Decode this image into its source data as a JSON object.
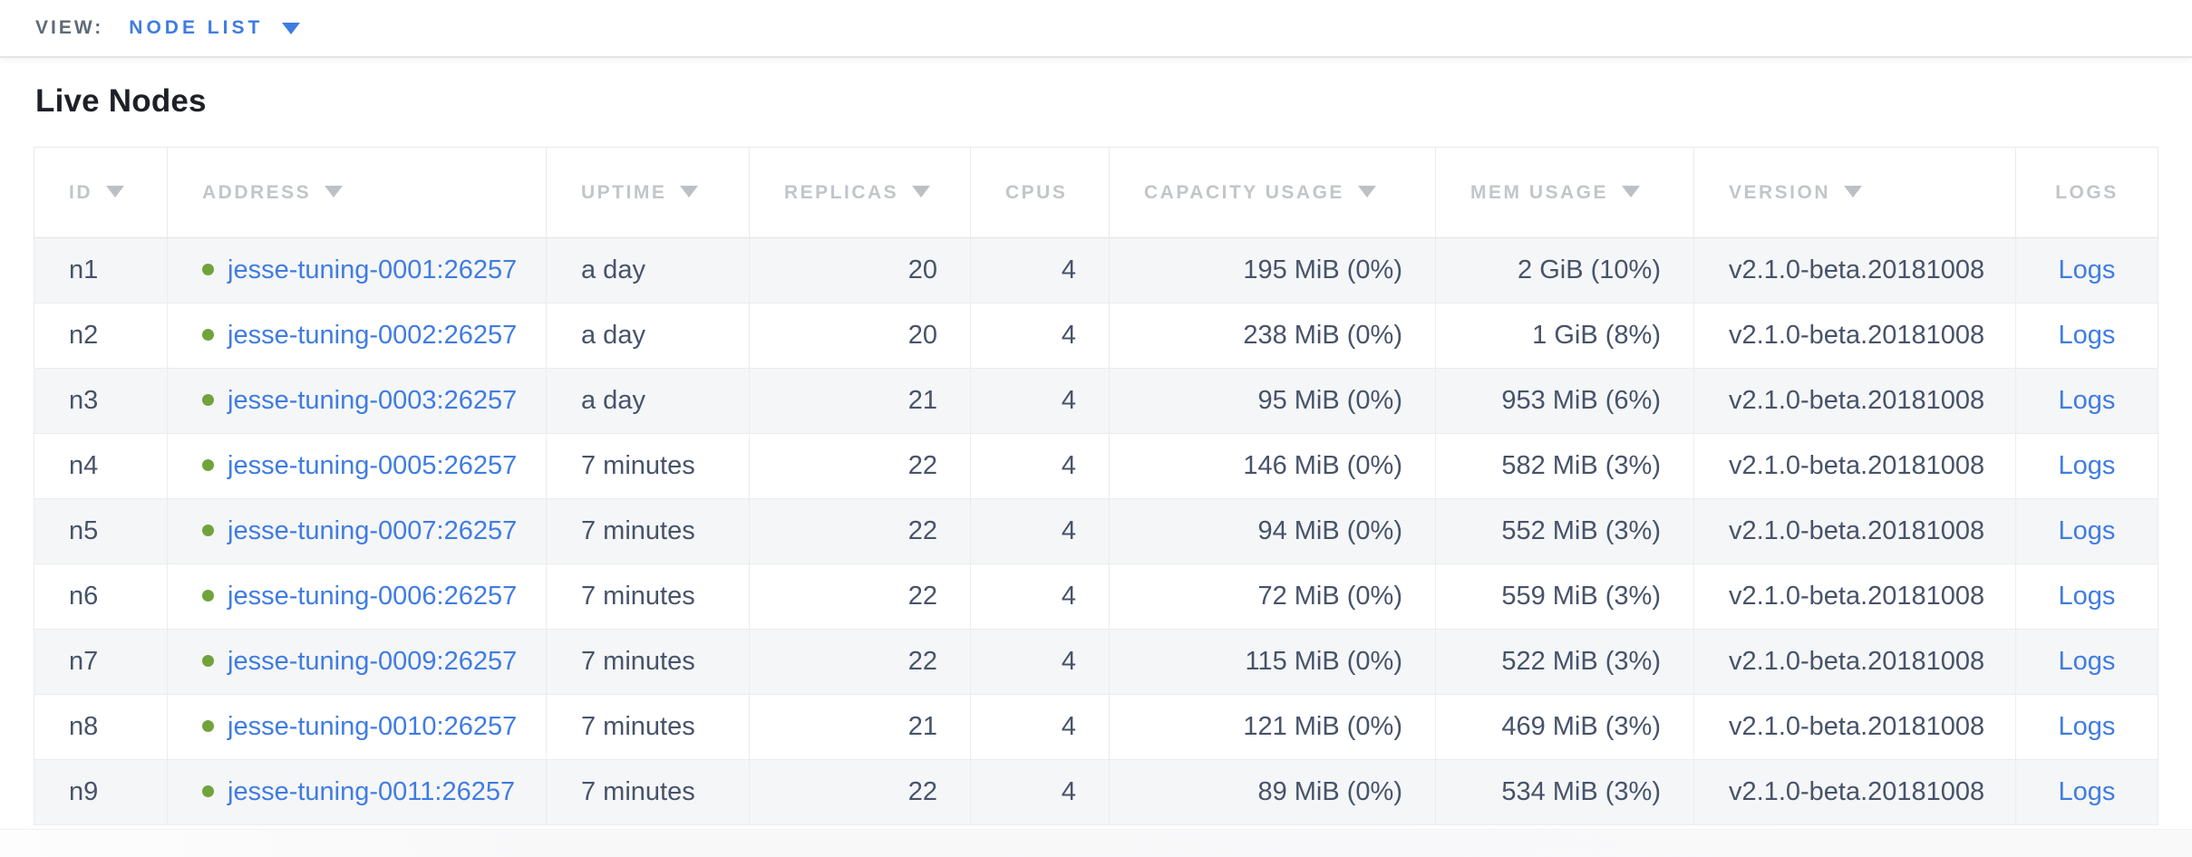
{
  "view_bar": {
    "label": "VIEW:",
    "value": "NODE LIST",
    "caret_icon": "caret-down-icon"
  },
  "page": {
    "title": "Live Nodes"
  },
  "colors": {
    "accent_link_blue": "#3f7ce2",
    "node_live_green": "#71a33c",
    "header_text_gray": "#c2c5c9",
    "cell_text": "#47536a",
    "row_alt_bg": "#f5f6f7",
    "border": "#ebecee"
  },
  "table": {
    "columns": [
      {
        "key": "id",
        "label": "ID",
        "sortable": true,
        "align": "left"
      },
      {
        "key": "address",
        "label": "ADDRESS",
        "sortable": true,
        "align": "left"
      },
      {
        "key": "uptime",
        "label": "UPTIME",
        "sortable": true,
        "align": "left"
      },
      {
        "key": "replicas",
        "label": "REPLICAS",
        "sortable": true,
        "align": "right"
      },
      {
        "key": "cpus",
        "label": "CPUS",
        "sortable": false,
        "align": "right"
      },
      {
        "key": "capacity_usage",
        "label": "CAPACITY USAGE",
        "sortable": true,
        "align": "right"
      },
      {
        "key": "mem_usage",
        "label": "MEM USAGE",
        "sortable": true,
        "align": "right"
      },
      {
        "key": "version",
        "label": "VERSION",
        "sortable": true,
        "align": "left"
      },
      {
        "key": "logs",
        "label": "LOGS",
        "sortable": false,
        "align": "center"
      }
    ],
    "rows": [
      {
        "id": "n1",
        "status": "live",
        "address": "jesse-tuning-0001:26257",
        "uptime": "a day",
        "replicas": "20",
        "cpus": "4",
        "capacity_usage": "195 MiB (0%)",
        "mem_usage": "2 GiB (10%)",
        "version": "v2.1.0-beta.20181008",
        "logs_label": "Logs"
      },
      {
        "id": "n2",
        "status": "live",
        "address": "jesse-tuning-0002:26257",
        "uptime": "a day",
        "replicas": "20",
        "cpus": "4",
        "capacity_usage": "238 MiB (0%)",
        "mem_usage": "1 GiB (8%)",
        "version": "v2.1.0-beta.20181008",
        "logs_label": "Logs"
      },
      {
        "id": "n3",
        "status": "live",
        "address": "jesse-tuning-0003:26257",
        "uptime": "a day",
        "replicas": "21",
        "cpus": "4",
        "capacity_usage": "95 MiB (0%)",
        "mem_usage": "953 MiB (6%)",
        "version": "v2.1.0-beta.20181008",
        "logs_label": "Logs"
      },
      {
        "id": "n4",
        "status": "live",
        "address": "jesse-tuning-0005:26257",
        "uptime": "7 minutes",
        "replicas": "22",
        "cpus": "4",
        "capacity_usage": "146 MiB (0%)",
        "mem_usage": "582 MiB (3%)",
        "version": "v2.1.0-beta.20181008",
        "logs_label": "Logs"
      },
      {
        "id": "n5",
        "status": "live",
        "address": "jesse-tuning-0007:26257",
        "uptime": "7 minutes",
        "replicas": "22",
        "cpus": "4",
        "capacity_usage": "94 MiB (0%)",
        "mem_usage": "552 MiB (3%)",
        "version": "v2.1.0-beta.20181008",
        "logs_label": "Logs"
      },
      {
        "id": "n6",
        "status": "live",
        "address": "jesse-tuning-0006:26257",
        "uptime": "7 minutes",
        "replicas": "22",
        "cpus": "4",
        "capacity_usage": "72 MiB (0%)",
        "mem_usage": "559 MiB (3%)",
        "version": "v2.1.0-beta.20181008",
        "logs_label": "Logs"
      },
      {
        "id": "n7",
        "status": "live",
        "address": "jesse-tuning-0009:26257",
        "uptime": "7 minutes",
        "replicas": "22",
        "cpus": "4",
        "capacity_usage": "115 MiB (0%)",
        "mem_usage": "522 MiB (3%)",
        "version": "v2.1.0-beta.20181008",
        "logs_label": "Logs"
      },
      {
        "id": "n8",
        "status": "live",
        "address": "jesse-tuning-0010:26257",
        "uptime": "7 minutes",
        "replicas": "21",
        "cpus": "4",
        "capacity_usage": "121 MiB (0%)",
        "mem_usage": "469 MiB (3%)",
        "version": "v2.1.0-beta.20181008",
        "logs_label": "Logs"
      },
      {
        "id": "n9",
        "status": "live",
        "address": "jesse-tuning-0011:26257",
        "uptime": "7 minutes",
        "replicas": "22",
        "cpus": "4",
        "capacity_usage": "89 MiB (0%)",
        "mem_usage": "534 MiB (3%)",
        "version": "v2.1.0-beta.20181008",
        "logs_label": "Logs"
      }
    ]
  }
}
